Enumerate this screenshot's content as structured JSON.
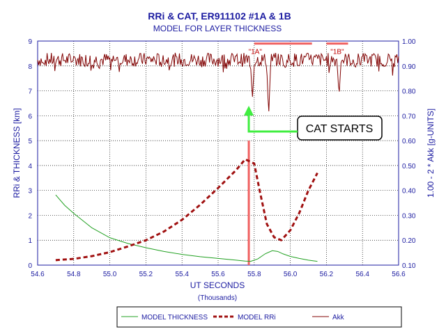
{
  "chart_data": {
    "type": "line",
    "title": "RRi & CAT, ER911102 #1A & 1B",
    "subtitle": "MODEL FOR LAYER THICKNESS",
    "xlabel": "UT SECONDS",
    "xlabel_sub": "(Thousands)",
    "ylabel_left": "RRi & THICKNESS [km]",
    "ylabel_right": "1.00 - 2 * Akk [g-UNITS]",
    "xlim": [
      54.6,
      56.6
    ],
    "ylim_left": [
      0,
      9
    ],
    "ylim_right": [
      0.1,
      1.0
    ],
    "x_ticks": [
      "54.6",
      "54.8",
      "55.0",
      "55.2",
      "55.4",
      "55.6",
      "55.8",
      "56.0",
      "56.2",
      "56.4",
      "56.6"
    ],
    "y_left_ticks": [
      "0",
      "1",
      "2",
      "3",
      "4",
      "5",
      "6",
      "7",
      "8",
      "9"
    ],
    "y_right_ticks": [
      "0.10",
      "0.20",
      "0.30",
      "0.40",
      "0.50",
      "0.60",
      "0.70",
      "0.80",
      "0.90",
      "1.00"
    ],
    "grid": true,
    "legend_position": "bottom",
    "series": [
      {
        "name": "MODEL THICKNESS",
        "axis": "left",
        "color": "#20a020",
        "style": "thin",
        "x": [
          54.7,
          54.75,
          54.8,
          54.9,
          55.0,
          55.1,
          55.2,
          55.3,
          55.4,
          55.5,
          55.6,
          55.7,
          55.75,
          55.78,
          55.82,
          55.86,
          55.9,
          55.93,
          55.96,
          56.0,
          56.05,
          56.1,
          56.15
        ],
        "y": [
          2.82,
          2.4,
          2.08,
          1.5,
          1.1,
          0.87,
          0.7,
          0.55,
          0.43,
          0.34,
          0.27,
          0.2,
          0.16,
          0.15,
          0.25,
          0.45,
          0.58,
          0.55,
          0.45,
          0.35,
          0.27,
          0.2,
          0.15
        ]
      },
      {
        "name": "MODEL RRi",
        "axis": "left",
        "color": "#a01010",
        "style": "dashed-thick",
        "x": [
          54.7,
          54.8,
          54.9,
          55.0,
          55.1,
          55.2,
          55.3,
          55.4,
          55.5,
          55.6,
          55.7,
          55.75,
          55.8,
          55.83,
          55.87,
          55.91,
          55.95,
          56.0,
          56.05,
          56.1,
          56.15
        ],
        "y": [
          0.2,
          0.25,
          0.36,
          0.52,
          0.75,
          1.0,
          1.35,
          1.82,
          2.42,
          3.1,
          3.82,
          4.25,
          4.08,
          3.0,
          1.65,
          1.12,
          1.0,
          1.4,
          2.1,
          3.0,
          3.7
        ]
      },
      {
        "name": "Akk",
        "axis": "right",
        "color": "#800000",
        "style": "thin-jagged",
        "x_start": 54.6,
        "x_end": 56.6,
        "baseline": 0.925,
        "noise_amplitude": 0.028,
        "dips": [
          {
            "x": 55.79,
            "y": 0.77
          },
          {
            "x": 55.88,
            "y": 0.7
          },
          {
            "x": 55.97,
            "y": 0.89
          },
          {
            "x": 56.27,
            "y": 0.78
          },
          {
            "x": 56.36,
            "y": 0.89
          }
        ]
      }
    ],
    "annotations": [
      {
        "text": "\"1A\"",
        "x_from": 55.8,
        "x_to": 56.12,
        "y_right": 0.99
      },
      {
        "text": "\"1B\"",
        "x_from": 56.2,
        "x_to": 56.32,
        "y_right": 0.99
      }
    ],
    "vertical_marker": {
      "x": 55.77,
      "y_bottom": 0,
      "y_top": 5.0,
      "color": "#f06060"
    },
    "callout": {
      "text": "CAT STARTS",
      "arrow_color": "#40ee40"
    }
  }
}
